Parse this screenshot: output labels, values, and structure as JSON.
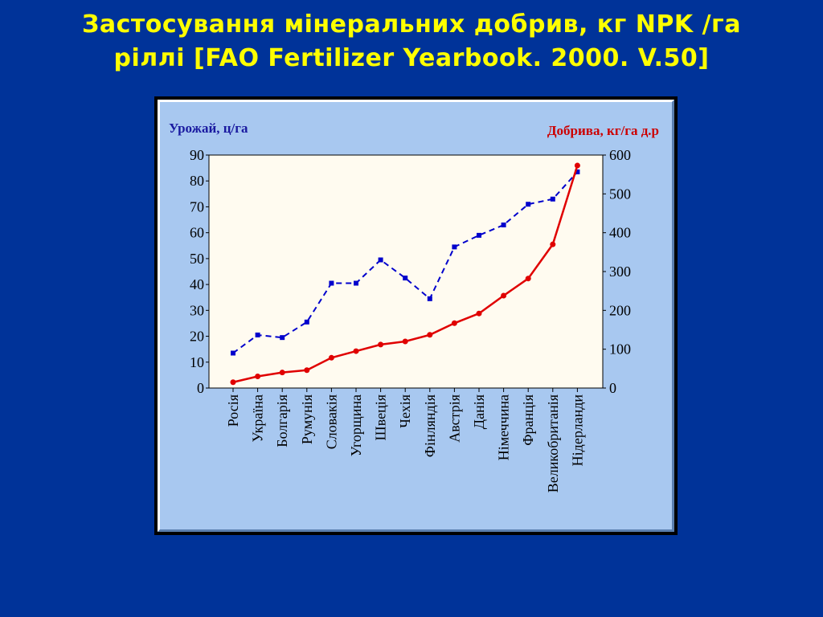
{
  "slide": {
    "title_line1": "Застосування мінеральних добрив, кг NPK /га",
    "title_line2": "ріллі [FAO Fertilizer Yearbook. 2000. V.50]"
  },
  "chart_data": {
    "type": "line",
    "categories": [
      "Росія",
      "Україна",
      "Болгарія",
      "Румунія",
      "Словакія",
      "Угорщина",
      "Швеція",
      "Чехія",
      "Фінляндія",
      "Австрія",
      "Данія",
      "Німеччина",
      "Франція",
      "Великобританія",
      "Нідерланди"
    ],
    "y_left_label": "Урожай, ц/га",
    "y_right_label": "Добрива, кг/га д.р",
    "y_left_range": [
      0,
      90
    ],
    "y_left_ticks": [
      "0",
      "10",
      "20",
      "30",
      "40",
      "50",
      "60",
      "70",
      "80",
      "90"
    ],
    "y_right_range": [
      0,
      600
    ],
    "y_right_ticks": [
      "0",
      "100",
      "200",
      "300",
      "400",
      "500",
      "600"
    ],
    "series": [
      {
        "axis": "left",
        "color": "#0000cc",
        "style": "dashed",
        "marker": "square",
        "values": [
          13.5,
          20.5,
          19.5,
          25.5,
          40.5,
          40.5,
          49.5,
          42.5,
          34.5,
          54.5,
          59,
          63,
          71,
          73,
          83.5
        ]
      },
      {
        "axis": "right",
        "color": "#e00000",
        "style": "solid",
        "marker": "circle",
        "values": [
          15,
          30,
          40,
          46,
          78,
          95,
          112,
          120,
          137,
          167,
          192,
          238,
          282,
          370,
          573
        ]
      }
    ],
    "grid": false,
    "plot_background": "#fffbf0"
  }
}
